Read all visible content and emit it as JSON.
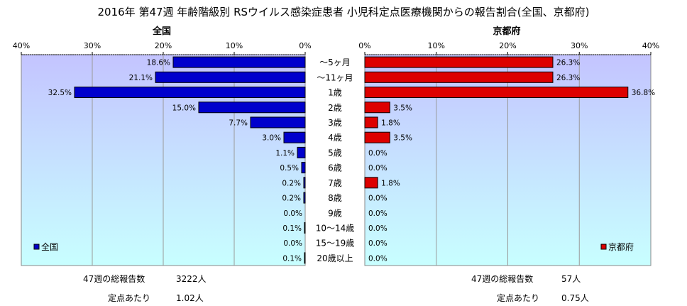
{
  "title": "2016年 第47週 年齢階級別 RSウイルス感染症患者 小児科定点医療機関からの報告割合(全国、京都府)",
  "colors": {
    "national": "#0000cc",
    "kyoto": "#dd0000",
    "plot_top": "#c4c4ff",
    "plot_bottom": "#c8ffff"
  },
  "chart_data": [
    {
      "type": "bar",
      "orientation": "horizontal",
      "direction": "right-to-left",
      "title": "全国",
      "xlim": [
        0,
        40
      ],
      "ticks": [
        "40%",
        "30%",
        "20%",
        "10%",
        "0%"
      ],
      "tick_values": [
        40,
        30,
        20,
        10,
        0
      ],
      "grid": true,
      "legend": "bottom-left",
      "series": [
        {
          "name": "全国",
          "color": "#0000cc",
          "values": [
            18.6,
            21.1,
            32.5,
            15.0,
            7.7,
            3.0,
            1.1,
            0.5,
            0.2,
            0.2,
            0.0,
            0.1,
            0.0,
            0.1
          ],
          "labels": [
            "18.6%",
            "21.1%",
            "32.5%",
            "15.0%",
            "7.7%",
            "3.0%",
            "1.1%",
            "0.5%",
            "0.2%",
            "0.2%",
            "0.0%",
            "0.1%",
            "0.0%",
            "0.1%"
          ]
        }
      ]
    },
    {
      "type": "bar",
      "orientation": "horizontal",
      "direction": "left-to-right",
      "title": "京都府",
      "xlim": [
        0,
        40
      ],
      "ticks": [
        "0%",
        "10%",
        "20%",
        "30%",
        "40%"
      ],
      "tick_values": [
        0,
        10,
        20,
        30,
        40
      ],
      "grid": true,
      "legend": "bottom-right",
      "series": [
        {
          "name": "京都府",
          "color": "#dd0000",
          "values": [
            26.3,
            26.3,
            36.8,
            3.5,
            1.8,
            3.5,
            0.0,
            0.0,
            1.8,
            0.0,
            0.0,
            0.0,
            0.0,
            0.0
          ],
          "labels": [
            "26.3%",
            "26.3%",
            "36.8%",
            "3.5%",
            "1.8%",
            "3.5%",
            "0.0%",
            "0.0%",
            "1.8%",
            "0.0%",
            "0.0%",
            "0.0%",
            "0.0%",
            "0.0%"
          ]
        }
      ]
    }
  ],
  "categories": [
    "～5ヶ月",
    "～11ヶ月",
    "1歳",
    "2歳",
    "3歳",
    "4歳",
    "5歳",
    "6歳",
    "7歳",
    "8歳",
    "9歳",
    "10～14歳",
    "15～19歳",
    "20歳以上"
  ],
  "summary": {
    "national": {
      "reports_label": "47週の総報告数",
      "reports_value": "3222人",
      "per_site_label": "定点あたり",
      "per_site_value": "1.02人"
    },
    "kyoto": {
      "reports_label": "47週の総報告数",
      "reports_value": "57人",
      "per_site_label": "定点あたり",
      "per_site_value": "0.75人"
    }
  }
}
